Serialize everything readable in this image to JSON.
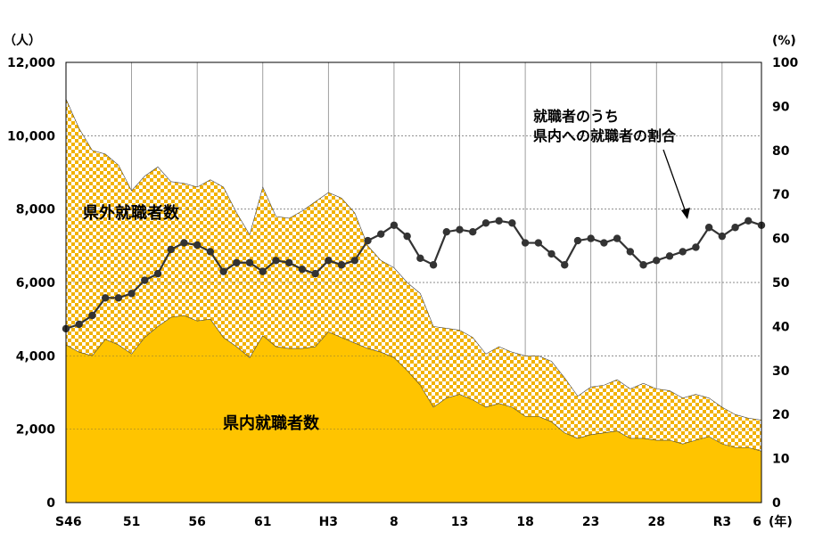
{
  "chart_data": {
    "type": "area",
    "y_left_unit": "（人）",
    "y_right_unit": "(%)",
    "x_unit": "(年)",
    "ylim_left": [
      0,
      12000
    ],
    "ylim_right": [
      0,
      100
    ],
    "y_left_ticks": [
      "0",
      "2,000",
      "4,000",
      "6,000",
      "8,000",
      "10,000",
      "12,000"
    ],
    "y_right_ticks": [
      "0",
      "10",
      "20",
      "30",
      "40",
      "50",
      "60",
      "70",
      "80",
      "90",
      "100"
    ],
    "x_tick_labels": [
      {
        "i": 0,
        "label": "S46"
      },
      {
        "i": 5,
        "label": "51"
      },
      {
        "i": 10,
        "label": "56"
      },
      {
        "i": 15,
        "label": "61"
      },
      {
        "i": 20,
        "label": "H3"
      },
      {
        "i": 25,
        "label": "8"
      },
      {
        "i": 30,
        "label": "13"
      },
      {
        "i": 35,
        "label": "18"
      },
      {
        "i": 40,
        "label": "23"
      },
      {
        "i": 45,
        "label": "28"
      },
      {
        "i": 50,
        "label": "R3"
      },
      {
        "i": 53,
        "label": "6"
      }
    ],
    "grid": true,
    "series": [
      {
        "name": "県内就職者数",
        "kind": "area",
        "axis": "left",
        "color": "#FFC400",
        "values": [
          4300,
          4100,
          4000,
          4450,
          4300,
          4050,
          4500,
          4800,
          5050,
          5100,
          4950,
          5000,
          4500,
          4250,
          3950,
          4550,
          4250,
          4200,
          4200,
          4250,
          4650,
          4500,
          4350,
          4200,
          4100,
          3950,
          3600,
          3200,
          2600,
          2850,
          2950,
          2800,
          2600,
          2700,
          2600,
          2350,
          2350,
          2200,
          1900,
          1750,
          1850,
          1900,
          1950,
          1750,
          1750,
          1700,
          1700,
          1600,
          1700,
          1800,
          1600,
          1500,
          1500,
          1400
        ]
      },
      {
        "name": "県外就職者数",
        "kind": "area_stacked_total",
        "axis": "left",
        "color": "#F2B200",
        "values": [
          11000,
          10200,
          9600,
          9500,
          9200,
          8500,
          8900,
          9150,
          8750,
          8700,
          8600,
          8800,
          8600,
          7900,
          7300,
          8600,
          7800,
          7750,
          7950,
          8200,
          8450,
          8300,
          7900,
          7000,
          6600,
          6400,
          6000,
          5700,
          4800,
          4750,
          4700,
          4500,
          4050,
          4250,
          4100,
          4000,
          4000,
          3850,
          3400,
          2900,
          3150,
          3200,
          3350,
          3100,
          3250,
          3100,
          3050,
          2850,
          2950,
          2850,
          2600,
          2400,
          2300,
          2250
        ]
      },
      {
        "name": "就職者のうち県内への就職者の割合",
        "kind": "line",
        "axis": "right",
        "color": "#333333",
        "values": [
          39.5,
          40.5,
          42.5,
          46.5,
          46.5,
          47.5,
          50.5,
          52,
          57.5,
          59,
          58.5,
          57,
          52.5,
          54.5,
          54.5,
          52.5,
          55,
          54.5,
          53,
          52,
          55,
          54,
          55,
          59.5,
          61,
          63,
          60.5,
          55.5,
          54,
          61.5,
          62,
          61.5,
          63.5,
          64,
          63.5,
          59,
          59,
          56.5,
          54,
          59.5,
          60,
          59,
          60,
          57,
          54,
          55,
          56,
          57,
          58,
          62.5,
          60.5,
          62.5,
          64,
          63
        ]
      }
    ],
    "annotations": [
      {
        "text": "県外就職者数"
      },
      {
        "text": "県内就職者数"
      },
      {
        "text": "就職者のうち"
      },
      {
        "text": "県内への就職者の割合"
      }
    ]
  }
}
